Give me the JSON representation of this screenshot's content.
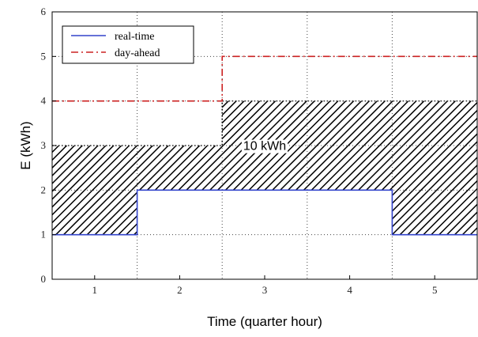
{
  "chart_data": {
    "type": "line",
    "xlabel": "Time (quarter hour)",
    "ylabel": "E (kWh)",
    "xlim": [
      0.5,
      5.5
    ],
    "ylim": [
      0,
      6
    ],
    "x_ticks": [
      "1",
      "2",
      "3",
      "4",
      "5"
    ],
    "y_ticks": [
      "0",
      "1",
      "2",
      "3",
      "4",
      "5",
      "6"
    ],
    "grid": true,
    "legend_position": "top-left",
    "series": [
      {
        "name": "real-time",
        "color": "#3344cc",
        "style": "solid",
        "step_values": [
          1,
          2,
          2,
          2,
          1
        ]
      },
      {
        "name": "day-ahead",
        "color": "#cc2222",
        "style": "dashed",
        "step_values": [
          4,
          4,
          5,
          5,
          5
        ]
      }
    ],
    "hatched_region": {
      "upper_values": [
        3,
        3,
        4,
        4,
        4
      ],
      "upper_boundary_style": "dotted"
    },
    "annotations": [
      {
        "text": "10 kWh",
        "x": 3.0,
        "y": 2.9
      }
    ]
  }
}
